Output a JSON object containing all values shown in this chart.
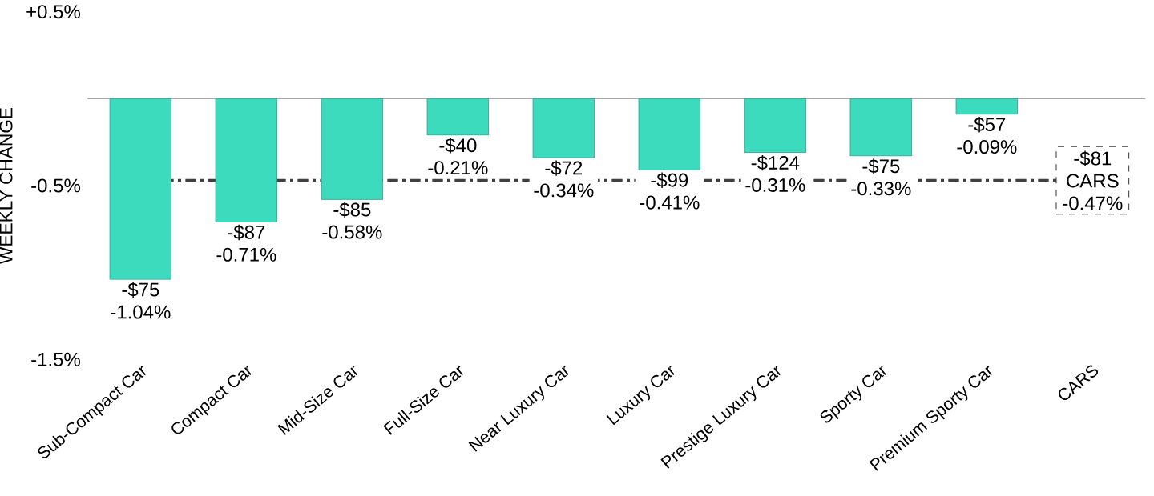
{
  "chart_data": {
    "type": "bar",
    "ylabel": "WEEKLY CHANGE",
    "categories": [
      "Sub-Compact Car",
      "Compact Car",
      "Mid-Size Car",
      "Full-Size Car",
      "Near Luxury Car",
      "Luxury Car",
      "Prestige Luxury Car",
      "Sporty Car",
      "Premium Sporty Car",
      "CARS"
    ],
    "values": [
      -1.04,
      -0.71,
      -0.58,
      -0.21,
      -0.34,
      -0.41,
      -0.31,
      -0.33,
      -0.09,
      null
    ],
    "color": "#3ddbbd",
    "value_labels": [
      "-$75 -1.04%",
      "-$87 -0.71%",
      "-$85 -0.58%",
      "-$40 -0.21%",
      "-$72 -0.34%",
      "-$99 -0.41%",
      "-$124 -0.31%",
      "-$75 -0.33%",
      "-$57 -0.09%",
      null
    ],
    "ylim": [
      -1.5,
      0.5
    ],
    "yticks": [
      {
        "value": 0.5,
        "label": "+0.5%"
      },
      {
        "value": -0.5,
        "label": "-0.5%"
      },
      {
        "value": -1.5,
        "label": "-1.5%"
      }
    ],
    "ref_lines": [
      {
        "axis": "y",
        "value": -0.47,
        "label": "-$81 CARS -0.47%",
        "color": "#404040",
        "line_style": "dashed"
      }
    ]
  }
}
